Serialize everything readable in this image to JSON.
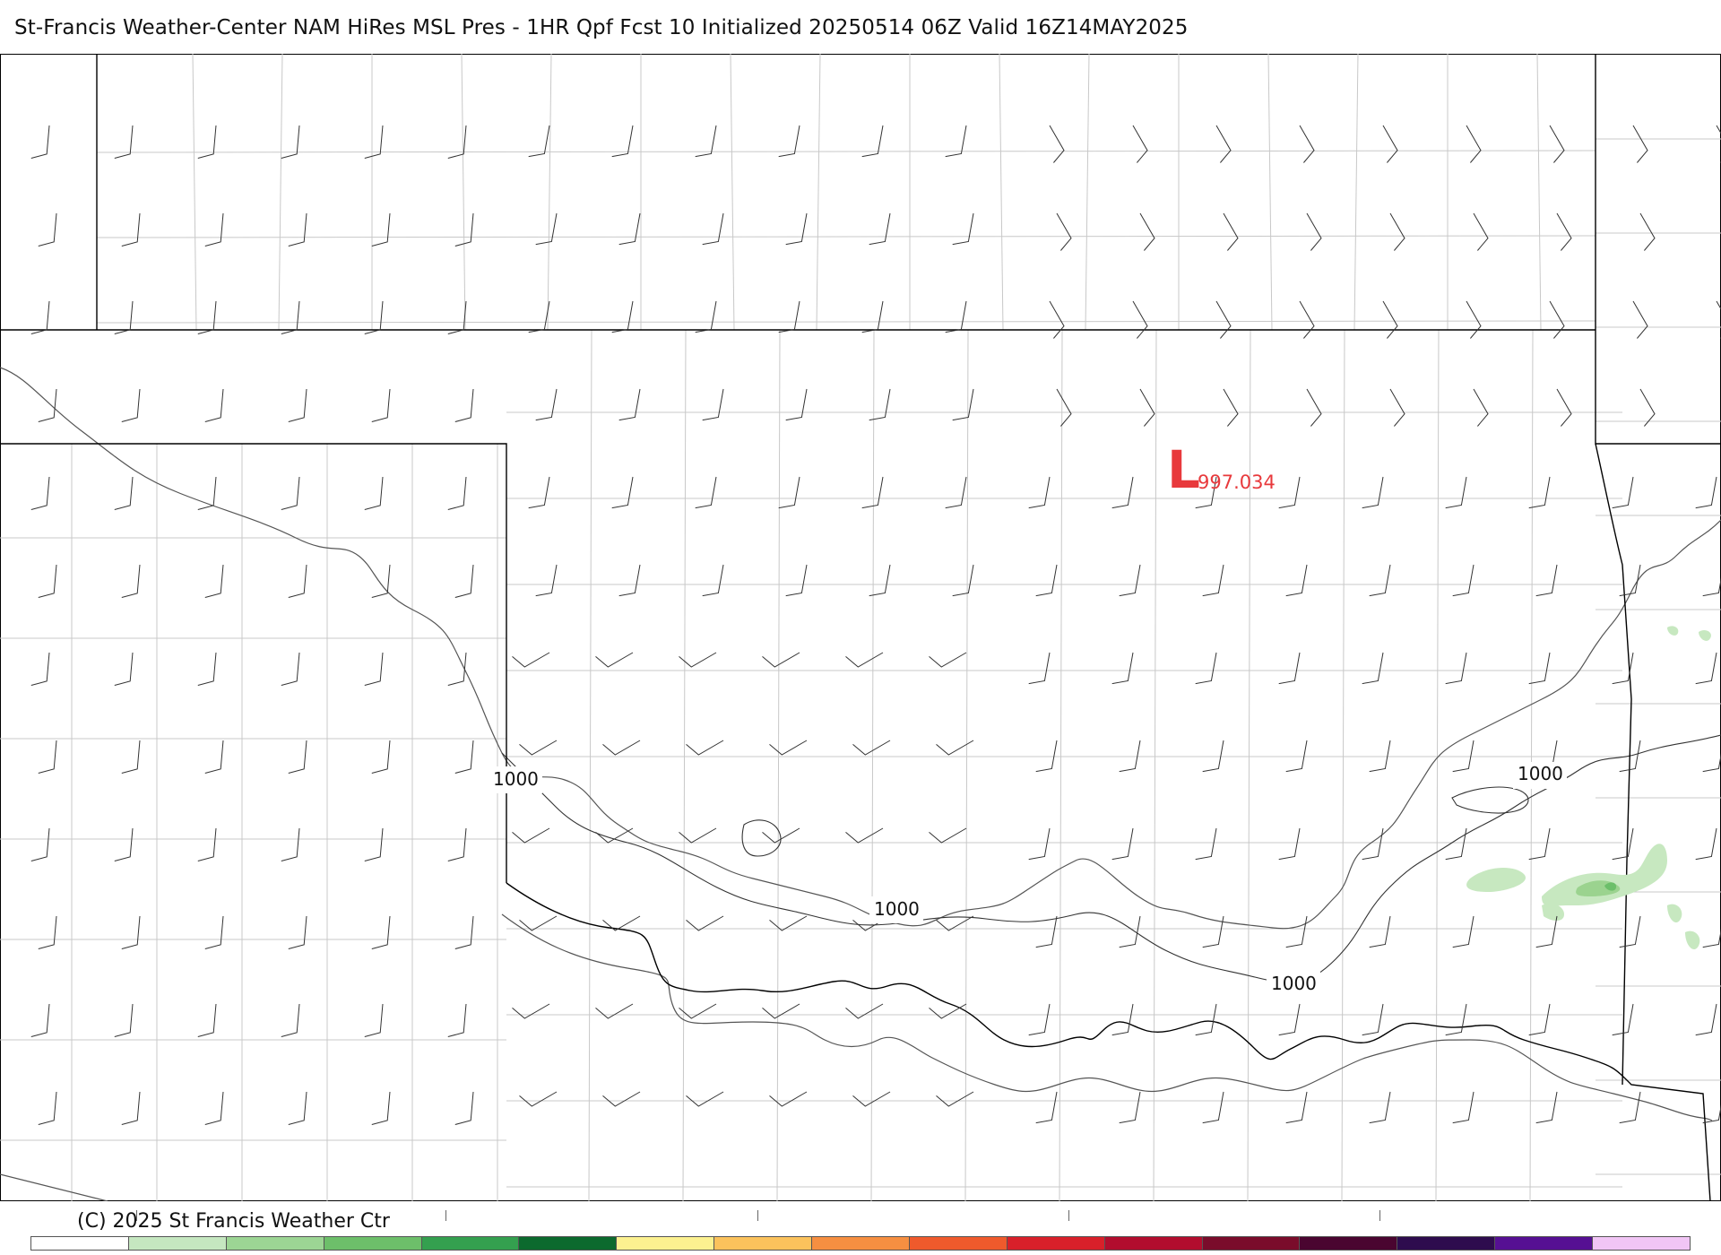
{
  "header": {
    "title": "St-Francis Weather-Center NAM HiRes MSL Pres - 1HR Qpf Fcst 10 Initialized 20250514 06Z Valid 16Z14MAY2025"
  },
  "map": {
    "low_center": {
      "symbol": "L",
      "value": "997.034",
      "color": "#e8393c"
    },
    "isobar_labels": [
      "1000",
      "1000",
      "1000",
      "1000"
    ],
    "colors": {
      "state_border": "#000000",
      "county_line": "#c8c8c8",
      "river": "#555555",
      "isobar": "#333333",
      "wind_barb": "#333333"
    },
    "precip_colors": [
      "#c7e8c0",
      "#9bd38f",
      "#6cbf6a"
    ]
  },
  "footer": {
    "credit": "(C) 2025 St Francis Weather Ctr"
  },
  "legend": {
    "colors": [
      "#ffffff",
      "#c5e7c0",
      "#9cd594",
      "#6dbf6a",
      "#34a04f",
      "#0c6a2e",
      "#fcf190",
      "#fbc25c",
      "#f68f41",
      "#ef5a2c",
      "#d8202a",
      "#b20d2e",
      "#7a0c2b",
      "#4a0530",
      "#2e0c4e",
      "#561093",
      "#f1c5f5"
    ]
  }
}
